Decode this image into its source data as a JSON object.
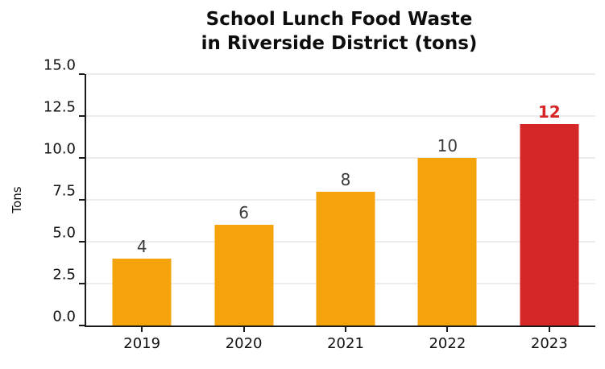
{
  "chart_data": {
    "type": "bar",
    "title": "School Lunch Food Waste\nin Riverside District (tons)",
    "xlabel": "",
    "ylabel": "Tons",
    "categories": [
      "2019",
      "2020",
      "2021",
      "2022",
      "2023"
    ],
    "values": [
      4,
      6,
      8,
      10,
      12
    ],
    "bar_labels": [
      "4",
      "6",
      "8",
      "10",
      "12"
    ],
    "highlight_index": 4,
    "ylim": [
      0,
      15
    ],
    "yticks": [
      0.0,
      2.5,
      5.0,
      7.5,
      10.0,
      12.5,
      15.0
    ],
    "ytick_labels": [
      "0.0",
      "2.5",
      "5.0",
      "7.5",
      "10.0",
      "12.5",
      "15.0"
    ],
    "grid": "horizontal",
    "legend_position": "none",
    "colors": {
      "bar_default": "#F5A30A",
      "bar_highlight": "#D62728",
      "value_label_default": "#3A3A3A",
      "value_label_highlight": "#D62728",
      "gridline": "#ECECEC",
      "axis": "#1A1A1A",
      "background": "#FFFFFF"
    }
  }
}
